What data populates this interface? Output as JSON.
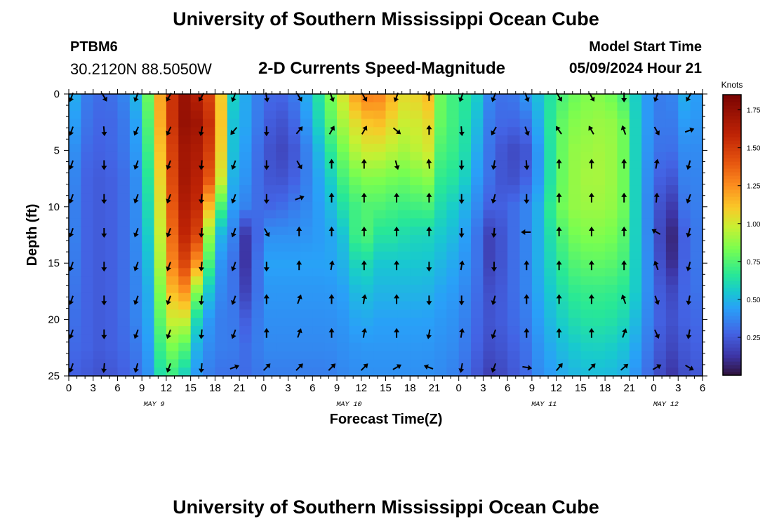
{
  "header": {
    "title": "University of Southern Mississippi Ocean Cube",
    "station_id": "PTBM6",
    "coordinates": "30.2120N  88.5050W",
    "subtitle": "2-D Currents Speed-Magnitude",
    "model_start_label": "Model Start Time",
    "model_start_value": "05/09/2024 Hour 21"
  },
  "footer": {
    "title": "University of Southern Mississippi Ocean Cube"
  },
  "chart_data": {
    "type": "heatmap",
    "title": "2-D Currents Speed-Magnitude",
    "xlabel": "Forecast Time(Z)",
    "ylabel": "Depth (ft)",
    "x_ticks": [
      "0",
      "3",
      "6",
      "9",
      "12",
      "15",
      "18",
      "21",
      "0",
      "3",
      "6",
      "9",
      "12",
      "15",
      "18",
      "21",
      "0",
      "3",
      "6",
      "9",
      "12",
      "15",
      "18",
      "21",
      "0",
      "3",
      "6"
    ],
    "x_range_hours": [
      0,
      78
    ],
    "x_date_labels": [
      {
        "label": "MAY 9",
        "hour": 10.5
      },
      {
        "label": "MAY 10",
        "hour": 34.5
      },
      {
        "label": "MAY 11",
        "hour": 58.5
      },
      {
        "label": "MAY 12",
        "hour": 73.5
      }
    ],
    "y_ticks": [
      0,
      5,
      10,
      15,
      20,
      25
    ],
    "y_range_ft": [
      0,
      25
    ],
    "colorbar": {
      "title": "Knots",
      "min": 0.0,
      "max": 1.85,
      "ticks": [
        0.25,
        0.5,
        0.75,
        1.0,
        1.25,
        1.5,
        1.75
      ],
      "tick_labels": [
        "0.25",
        "0.50",
        "0.75",
        "1.00",
        "1.25",
        "1.50",
        "1.75"
      ]
    },
    "speed_field": {
      "units": "knots",
      "hours": [
        0,
        2,
        4,
        6,
        8,
        10,
        12,
        14,
        16,
        18,
        20,
        22,
        24,
        26,
        28,
        30,
        32,
        34,
        36,
        38,
        40,
        42,
        44,
        46,
        48,
        50,
        52,
        54,
        56,
        58,
        60,
        62,
        64,
        66,
        68,
        70,
        72,
        74,
        76,
        78
      ],
      "depths_ft": [
        0,
        2.5,
        5,
        7.5,
        10,
        12.5,
        15,
        17.5,
        20,
        22.5,
        25
      ],
      "values": [
        [
          0.55,
          0.35,
          0.3,
          0.32,
          0.45,
          0.85,
          1.4,
          1.75,
          1.6,
          1.4,
          0.6,
          0.45,
          0.3,
          0.28,
          0.35,
          0.55,
          0.8,
          1.05,
          1.3,
          1.3,
          1.15,
          1.0,
          1.2,
          0.75,
          0.7,
          0.6,
          0.35,
          0.3,
          0.4,
          0.55,
          0.7,
          0.8,
          0.85,
          0.85,
          0.75,
          0.55,
          0.35,
          0.35,
          0.5,
          0.4
        ],
        [
          0.5,
          0.33,
          0.28,
          0.3,
          0.4,
          0.8,
          1.4,
          1.75,
          1.7,
          1.45,
          0.55,
          0.45,
          0.28,
          0.22,
          0.3,
          0.5,
          0.75,
          0.95,
          1.1,
          1.15,
          1.05,
          0.95,
          1.1,
          0.75,
          0.7,
          0.55,
          0.32,
          0.28,
          0.3,
          0.5,
          0.75,
          0.85,
          0.88,
          0.9,
          0.85,
          0.55,
          0.35,
          0.33,
          0.45,
          0.4
        ],
        [
          0.45,
          0.3,
          0.27,
          0.3,
          0.38,
          0.75,
          1.35,
          1.7,
          1.65,
          1.4,
          0.55,
          0.42,
          0.25,
          0.18,
          0.25,
          0.42,
          0.65,
          0.85,
          1.0,
          1.0,
          0.95,
          0.9,
          1.05,
          0.7,
          0.7,
          0.5,
          0.3,
          0.2,
          0.2,
          0.45,
          0.75,
          0.88,
          0.9,
          0.92,
          0.85,
          0.55,
          0.33,
          0.3,
          0.4,
          0.38
        ],
        [
          0.42,
          0.28,
          0.25,
          0.28,
          0.35,
          0.7,
          1.3,
          1.7,
          1.6,
          1.3,
          0.5,
          0.4,
          0.25,
          0.22,
          0.28,
          0.4,
          0.55,
          0.75,
          0.85,
          0.85,
          0.82,
          0.8,
          0.9,
          0.65,
          0.65,
          0.45,
          0.3,
          0.2,
          0.25,
          0.45,
          0.75,
          0.88,
          0.92,
          0.92,
          0.85,
          0.55,
          0.3,
          0.22,
          0.38,
          0.36
        ],
        [
          0.4,
          0.28,
          0.25,
          0.28,
          0.35,
          0.65,
          1.25,
          1.65,
          1.55,
          0.9,
          0.45,
          0.35,
          0.28,
          0.3,
          0.35,
          0.4,
          0.5,
          0.65,
          0.75,
          0.75,
          0.72,
          0.7,
          0.75,
          0.6,
          0.55,
          0.4,
          0.25,
          0.28,
          0.35,
          0.5,
          0.78,
          0.88,
          0.9,
          0.9,
          0.85,
          0.55,
          0.28,
          0.12,
          0.35,
          0.35
        ],
        [
          0.4,
          0.28,
          0.25,
          0.28,
          0.35,
          0.6,
          1.2,
          1.6,
          1.45,
          0.55,
          0.4,
          0.1,
          0.4,
          0.4,
          0.4,
          0.42,
          0.45,
          0.55,
          0.8,
          0.65,
          0.65,
          0.6,
          0.6,
          0.55,
          0.5,
          0.35,
          0.15,
          0.28,
          0.35,
          0.5,
          0.7,
          0.82,
          0.85,
          0.85,
          0.8,
          0.55,
          0.28,
          0.05,
          0.3,
          0.35
        ],
        [
          0.38,
          0.28,
          0.25,
          0.28,
          0.35,
          0.55,
          1.15,
          1.5,
          1.2,
          0.45,
          0.35,
          0.1,
          0.45,
          0.45,
          0.45,
          0.45,
          0.45,
          0.5,
          0.65,
          0.55,
          0.55,
          0.55,
          0.55,
          0.5,
          0.45,
          0.35,
          0.15,
          0.28,
          0.35,
          0.5,
          0.65,
          0.75,
          0.78,
          0.78,
          0.75,
          0.55,
          0.3,
          0.08,
          0.3,
          0.35
        ],
        [
          0.35,
          0.28,
          0.25,
          0.28,
          0.35,
          0.5,
          1.05,
          1.3,
          0.8,
          0.4,
          0.35,
          0.15,
          0.42,
          0.42,
          0.42,
          0.42,
          0.42,
          0.45,
          0.55,
          0.5,
          0.5,
          0.5,
          0.5,
          0.45,
          0.42,
          0.32,
          0.2,
          0.28,
          0.35,
          0.48,
          0.6,
          0.68,
          0.7,
          0.7,
          0.68,
          0.55,
          0.3,
          0.18,
          0.3,
          0.33
        ],
        [
          0.33,
          0.28,
          0.25,
          0.28,
          0.35,
          0.48,
          0.95,
          1.05,
          0.55,
          0.35,
          0.35,
          0.25,
          0.4,
          0.4,
          0.4,
          0.4,
          0.4,
          0.42,
          0.48,
          0.45,
          0.45,
          0.45,
          0.45,
          0.42,
          0.4,
          0.3,
          0.22,
          0.28,
          0.33,
          0.45,
          0.55,
          0.62,
          0.65,
          0.65,
          0.62,
          0.5,
          0.3,
          0.22,
          0.28,
          0.3
        ],
        [
          0.3,
          0.28,
          0.25,
          0.28,
          0.32,
          0.45,
          0.85,
          0.8,
          0.45,
          0.35,
          0.35,
          0.3,
          0.38,
          0.38,
          0.38,
          0.38,
          0.38,
          0.4,
          0.42,
          0.42,
          0.42,
          0.42,
          0.42,
          0.4,
          0.38,
          0.28,
          0.2,
          0.25,
          0.3,
          0.42,
          0.5,
          0.55,
          0.58,
          0.58,
          0.55,
          0.45,
          0.28,
          0.18,
          0.25,
          0.28
        ],
        [
          0.28,
          0.25,
          0.22,
          0.25,
          0.3,
          0.42,
          0.75,
          0.6,
          0.4,
          0.32,
          0.32,
          0.3,
          0.35,
          0.35,
          0.35,
          0.35,
          0.35,
          0.38,
          0.4,
          0.4,
          0.4,
          0.4,
          0.4,
          0.38,
          0.35,
          0.25,
          0.15,
          0.22,
          0.28,
          0.4,
          0.45,
          0.5,
          0.52,
          0.52,
          0.5,
          0.4,
          0.25,
          0.12,
          0.22,
          0.25
        ]
      ]
    },
    "current_direction_field": {
      "units": "degrees, direction arrow points toward (0 = up)",
      "hours": [
        0,
        4,
        8,
        12,
        16,
        20,
        24,
        28,
        32,
        36,
        40,
        44,
        48,
        52,
        56,
        60,
        64,
        68,
        72,
        76
      ],
      "depths_ft": [
        0,
        3,
        6,
        9,
        12,
        15,
        18,
        21,
        24
      ],
      "directions": [
        [
          200,
          150,
          200,
          210,
          210,
          200,
          170,
          150,
          160,
          150,
          200,
          0,
          200,
          200,
          160,
          150,
          150,
          180,
          200,
          210
        ],
        [
          200,
          175,
          205,
          205,
          190,
          220,
          180,
          40,
          30,
          30,
          130,
          0,
          175,
          210,
          160,
          325,
          330,
          340,
          150,
          70
        ],
        [
          200,
          180,
          200,
          200,
          185,
          200,
          180,
          150,
          0,
          0,
          165,
          355,
          180,
          190,
          175,
          0,
          0,
          0,
          10,
          195
        ],
        [
          200,
          180,
          200,
          200,
          185,
          200,
          180,
          70,
          0,
          0,
          0,
          0,
          180,
          195,
          180,
          0,
          0,
          0,
          5,
          200
        ],
        [
          200,
          180,
          200,
          200,
          185,
          200,
          150,
          0,
          0,
          0,
          0,
          0,
          180,
          185,
          270,
          0,
          0,
          0,
          300,
          195
        ],
        [
          200,
          180,
          200,
          200,
          185,
          200,
          180,
          0,
          10,
          0,
          0,
          180,
          10,
          180,
          0,
          0,
          0,
          0,
          340,
          195
        ],
        [
          200,
          180,
          200,
          200,
          185,
          200,
          0,
          20,
          0,
          10,
          0,
          180,
          180,
          195,
          0,
          0,
          0,
          340,
          160,
          190
        ],
        [
          200,
          180,
          200,
          200,
          185,
          200,
          0,
          20,
          0,
          10,
          0,
          190,
          10,
          200,
          0,
          0,
          0,
          20,
          155,
          190
        ],
        [
          200,
          185,
          195,
          200,
          185,
          70,
          45,
          45,
          45,
          45,
          60,
          290,
          190,
          200,
          100,
          40,
          45,
          50,
          60,
          120
        ]
      ]
    }
  }
}
